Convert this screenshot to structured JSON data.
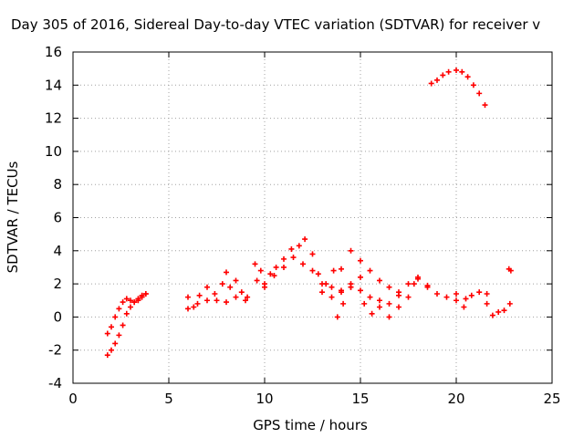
{
  "chart_data": {
    "type": "scatter",
    "title": "Day 305 of 2016, Sidereal Day-to-day VTEC variation (SDTVAR) for receiver v",
    "xlabel": "GPS time / hours",
    "ylabel": "SDTVAR / TECUs",
    "xlim": [
      0,
      25
    ],
    "ylim": [
      -4,
      16
    ],
    "x_ticks": [
      "0",
      "5",
      "10",
      "15",
      "20",
      "25"
    ],
    "y_ticks": [
      "-4",
      "-2",
      "0",
      "2",
      "4",
      "6",
      "8",
      "10",
      "12",
      "14",
      "16"
    ],
    "grid": true,
    "marker": "+",
    "color": "#ff0000",
    "series": [
      {
        "x": [
          1.8,
          2.0,
          2.2,
          2.4,
          2.6,
          2.8,
          3.0,
          3.2,
          3.4,
          3.6,
          3.8
        ],
        "y": [
          -2.3,
          -2.0,
          -1.6,
          -1.1,
          -0.5,
          0.2,
          0.6,
          0.9,
          1.1,
          1.3,
          1.4
        ]
      },
      {
        "x": [
          1.8,
          2.0,
          2.2,
          2.4,
          2.6,
          2.8,
          3.0,
          3.2,
          3.4,
          3.6,
          3.8
        ],
        "y": [
          -1.0,
          -0.6,
          0.0,
          0.5,
          0.9,
          1.1,
          1.0,
          0.9,
          1.0,
          1.2,
          1.4
        ]
      },
      {
        "x": [
          6.0,
          6.3,
          6.6,
          7.0,
          7.4,
          7.8,
          8.0,
          8.2,
          8.5,
          8.8,
          9.1
        ],
        "y": [
          1.2,
          0.6,
          1.3,
          1.8,
          1.4,
          2.0,
          2.7,
          1.8,
          2.2,
          1.5,
          1.2
        ]
      },
      {
        "x": [
          6.0,
          6.5,
          7.0,
          7.5,
          8.0,
          8.5,
          9.0
        ],
        "y": [
          0.5,
          0.8,
          1.0,
          1.0,
          0.9,
          1.2,
          1.0
        ]
      },
      {
        "x": [
          9.5,
          9.8,
          10.0,
          10.3,
          10.6,
          11.0,
          11.4,
          11.8,
          12.1,
          12.5,
          12.8,
          13.2,
          13.6,
          14.0
        ],
        "y": [
          3.2,
          2.8,
          2.0,
          2.6,
          3.0,
          3.5,
          4.1,
          4.3,
          4.7,
          3.8,
          2.6,
          2.0,
          2.8,
          2.9
        ]
      },
      {
        "x": [
          9.6,
          10.0,
          10.5,
          11.0,
          11.5,
          12.0,
          12.5,
          13.0,
          13.5,
          14.0,
          14.5
        ],
        "y": [
          2.2,
          1.8,
          2.5,
          3.0,
          3.6,
          3.2,
          2.8,
          1.5,
          1.2,
          1.6,
          2.0
        ]
      },
      {
        "x": [
          13.0,
          13.5,
          14.0,
          14.5,
          15.0,
          15.5,
          16.0,
          16.5,
          17.0
        ],
        "y": [
          2.0,
          1.8,
          1.5,
          1.8,
          1.6,
          1.2,
          1.0,
          0.8,
          1.3
        ]
      },
      {
        "x": [
          13.8,
          14.1,
          14.5,
          15.0
        ],
        "y": [
          0.0,
          0.8,
          1.8,
          2.4
        ]
      },
      {
        "x": [
          14.5,
          15.0,
          15.5,
          16.0,
          16.5,
          17.0,
          17.5,
          18.0,
          18.5,
          19.0,
          19.5,
          20.0,
          20.5
        ],
        "y": [
          4.0,
          3.4,
          2.8,
          2.2,
          1.8,
          1.5,
          2.0,
          2.4,
          1.8,
          1.4,
          1.2,
          1.0,
          1.1
        ]
      },
      {
        "x": [
          15.2,
          15.6,
          16.0,
          16.5,
          17.0,
          17.5,
          17.8,
          18.0,
          18.5
        ],
        "y": [
          0.8,
          0.2,
          0.6,
          0.0,
          0.6,
          1.2,
          2.0,
          2.3,
          1.9
        ]
      },
      {
        "x": [
          20.0,
          20.4,
          20.8,
          21.2,
          21.6
        ],
        "y": [
          1.4,
          0.6,
          1.3,
          1.5,
          1.4
        ]
      },
      {
        "x": [
          21.6,
          21.9,
          22.2,
          22.5,
          22.8
        ],
        "y": [
          0.8,
          0.1,
          0.3,
          0.4,
          0.8
        ]
      },
      {
        "x": [
          22.75,
          22.85
        ],
        "y": [
          2.9,
          2.8
        ]
      },
      {
        "x": [
          18.7,
          19.0,
          19.3,
          19.6,
          20.0,
          20.3,
          20.6,
          20.9,
          21.2,
          21.5
        ],
        "y": [
          14.1,
          14.3,
          14.6,
          14.8,
          14.9,
          14.8,
          14.5,
          14.0,
          13.5,
          12.8
        ]
      }
    ]
  }
}
